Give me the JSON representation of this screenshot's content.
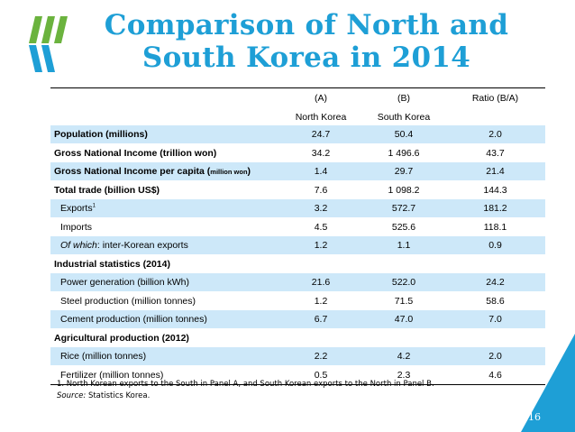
{
  "title": {
    "line1": "Comparison of North and",
    "line2": "South Korea in 2014"
  },
  "colors": {
    "accent": "#1e9fd6",
    "shade": "#cde8f9",
    "logo_green": "#6bb33e",
    "logo_blue": "#1e9fd6",
    "corner": "#1e9fd6"
  },
  "header": {
    "col_a_line1": "(A)",
    "col_a_line2": "North Korea",
    "col_b_line1": "(B)",
    "col_b_line2": "South Korea",
    "col_ratio": "Ratio (B/A)"
  },
  "rows": [
    {
      "label": "Population (millions)",
      "a": "24.7",
      "b": "50.4",
      "ratio": "2.0"
    },
    {
      "label": "Gross National Income (trillion won)",
      "a": "34.2",
      "b": "1 496.6",
      "ratio": "43.7"
    },
    {
      "label": "Gross National Income per capita (",
      "label_small": "million won",
      "label_end": ")",
      "a": "1.4",
      "b": "29.7",
      "ratio": "21.4"
    },
    {
      "label": "Total trade (billion US$)",
      "a": "7.6",
      "b": "1 098.2",
      "ratio": "144.3"
    },
    {
      "label": "Exports",
      "sup": "1",
      "a": "3.2",
      "b": "572.7",
      "ratio": "181.2"
    },
    {
      "label": "Imports",
      "a": "4.5",
      "b": "525.6",
      "ratio": "118.1"
    },
    {
      "label_italic": "Of which",
      "label": ": inter-Korean exports",
      "a": "1.2",
      "b": "1.1",
      "ratio": "0.9"
    },
    {
      "label": "Industrial statistics (2014)"
    },
    {
      "label": "Power generation (billion kWh)",
      "a": "21.6",
      "b": "522.0",
      "ratio": "24.2"
    },
    {
      "label": "Steel production (million tonnes)",
      "a": "1.2",
      "b": "71.5",
      "ratio": "58.6"
    },
    {
      "label": "Cement production (million tonnes)",
      "a": "6.7",
      "b": "47.0",
      "ratio": "7.0"
    },
    {
      "label": "Agricultural production (2012)"
    },
    {
      "label": "Rice (million tonnes)",
      "a": "2.2",
      "b": "4.2",
      "ratio": "2.0"
    },
    {
      "label": "Fertilizer (million tonnes)",
      "a": "0.5",
      "b": "2.3",
      "ratio": "4.6"
    }
  ],
  "footnote": {
    "note1": "1.   North Korean exports to the South in Panel A, and South Korean exports to the North in Panel B.",
    "source_label": "Source:",
    "source_text": " Statistics Korea."
  },
  "page_number": "16"
}
